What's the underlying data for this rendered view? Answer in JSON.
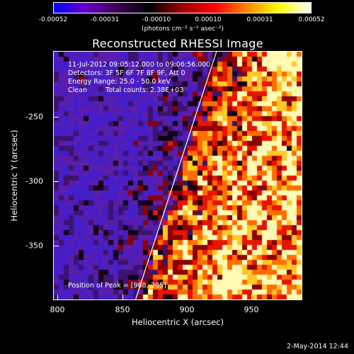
{
  "colorbar": {
    "ticks": [
      "-0.00052",
      "-0.00031",
      "-0.00010",
      "0.00010",
      "0.00031",
      "0.00052"
    ],
    "units": "(photons cm⁻² s⁻¹ asec⁻²)",
    "colors": [
      "#0000ff",
      "#6a00c8",
      "#3c0050",
      "#000000",
      "#a00000",
      "#ff0000",
      "#ff8000",
      "#ffff00",
      "#ffffff"
    ]
  },
  "chart_data": {
    "type": "heatmap",
    "title": "Reconstructed RHESSI Image",
    "xlabel": "Heliocentric X (arcsec)",
    "ylabel": "Heliocentric Y (arcsec)",
    "x_ticks": [
      "800",
      "850",
      "900",
      "950"
    ],
    "y_ticks": [
      "-250",
      "-300",
      "-350"
    ],
    "xlim": [
      796,
      986
    ],
    "ylim": [
      -392,
      -202
    ],
    "annotations": [
      "11-Jul-2012 09:05:12.000 to 09:06:56.000",
      "Detectors: 3F 5F 6F 7F 8F 9F, Att 0",
      "Energy Range: 25.0 - 50.0 keV",
      "Clean",
      "Total counts: 2.38E+03"
    ],
    "peak_label": "Position of Peak = [968,-205]",
    "limb_line": [
      [
        858,
        -392
      ],
      [
        920,
        -202
      ]
    ]
  },
  "footer": "2-May-2014 12:44"
}
